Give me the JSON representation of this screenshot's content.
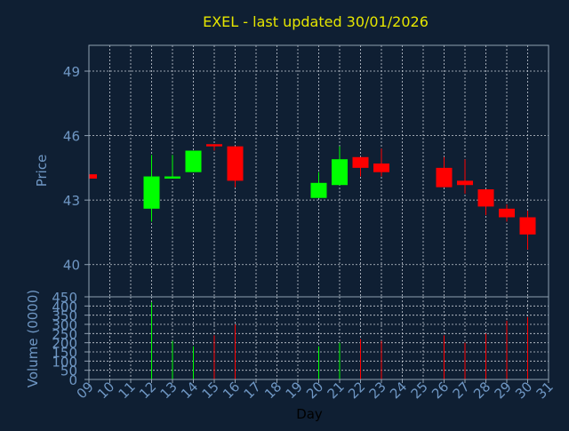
{
  "chart_data": {
    "type": "candlestick",
    "title": "EXEL - last updated 30/01/2026",
    "xlabel": "Day",
    "colors": {
      "background": "#0f1f33",
      "plot_border": "#8fa0b2",
      "grid": "#c8ced6",
      "tick_label": "#6f97c4",
      "title": "#e6e600",
      "up": "#00ff00",
      "down": "#ff0000"
    },
    "x_tick_labels": [
      "09",
      "10",
      "11",
      "12",
      "13",
      "14",
      "15",
      "16",
      "17",
      "18",
      "19",
      "20",
      "21",
      "22",
      "23",
      "24",
      "25",
      "26",
      "27",
      "28",
      "29",
      "30",
      "31"
    ],
    "price_panel": {
      "ylabel": "Price",
      "ylim": [
        38.5,
        50.2
      ],
      "yticks": [
        40,
        43,
        46,
        49
      ],
      "grid": true
    },
    "volume_panel": {
      "ylabel": "Volume (0000)",
      "ylim": [
        0,
        450
      ],
      "yticks": [
        0,
        50,
        100,
        150,
        200,
        250,
        300,
        350,
        400,
        450
      ],
      "grid": true
    },
    "candles": [
      {
        "day": "09",
        "open": 44.2,
        "high": 44.2,
        "low": 44.0,
        "close": 44.0,
        "volume": 0
      },
      {
        "day": "12",
        "open": 42.6,
        "high": 45.1,
        "low": 42.0,
        "close": 44.1,
        "volume": 420
      },
      {
        "day": "13",
        "open": 44.0,
        "high": 45.1,
        "low": 44.0,
        "close": 44.1,
        "volume": 210
      },
      {
        "day": "14",
        "open": 44.3,
        "high": 45.3,
        "low": 44.3,
        "close": 45.3,
        "volume": 180
      },
      {
        "day": "15",
        "open": 45.6,
        "high": 45.6,
        "low": 45.3,
        "close": 45.5,
        "volume": 240
      },
      {
        "day": "16",
        "open": 45.5,
        "high": 45.5,
        "low": 43.6,
        "close": 43.9,
        "volume": 300
      },
      {
        "day": "20",
        "open": 43.1,
        "high": 44.3,
        "low": 43.1,
        "close": 43.8,
        "volume": 180
      },
      {
        "day": "21",
        "open": 43.7,
        "high": 45.5,
        "low": 43.7,
        "close": 44.9,
        "volume": 200
      },
      {
        "day": "22",
        "open": 45.0,
        "high": 45.0,
        "low": 44.1,
        "close": 44.5,
        "volume": 220
      },
      {
        "day": "23",
        "open": 44.7,
        "high": 45.4,
        "low": 44.1,
        "close": 44.3,
        "volume": 210
      },
      {
        "day": "26",
        "open": 44.5,
        "high": 45.0,
        "low": 43.6,
        "close": 43.6,
        "volume": 240
      },
      {
        "day": "27",
        "open": 43.9,
        "high": 44.9,
        "low": 43.3,
        "close": 43.7,
        "volume": 200
      },
      {
        "day": "28",
        "open": 43.5,
        "high": 43.5,
        "low": 42.3,
        "close": 42.7,
        "volume": 250
      },
      {
        "day": "29",
        "open": 42.6,
        "high": 42.8,
        "low": 42.0,
        "close": 42.2,
        "volume": 320
      },
      {
        "day": "30",
        "open": 42.2,
        "high": 42.5,
        "low": 40.7,
        "close": 41.4,
        "volume": 340
      }
    ]
  }
}
